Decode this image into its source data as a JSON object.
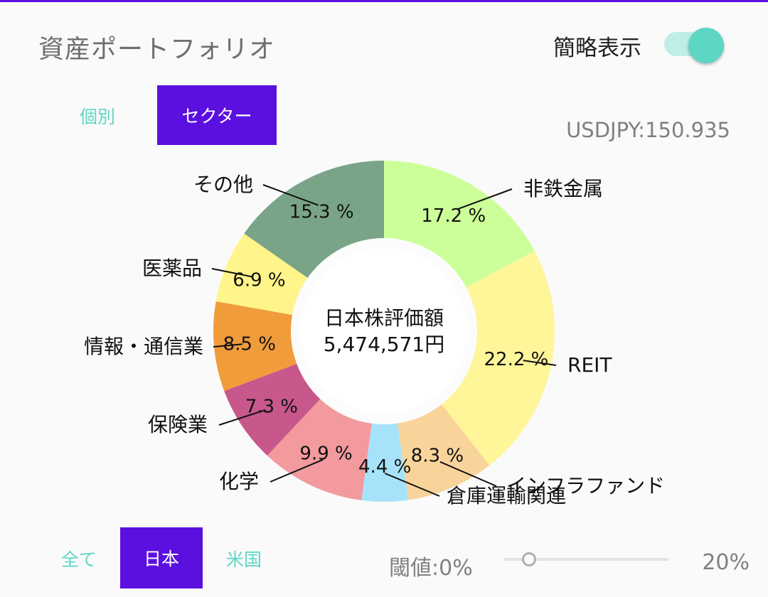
{
  "header": {
    "title": "資産ポートフォリオ",
    "toggle_label": "簡略表示",
    "toggle_on": true
  },
  "view_tabs": [
    {
      "label": "個別",
      "selected": false
    },
    {
      "label": "セクター",
      "selected": true
    }
  ],
  "fx_rate": "USDJPY:150.935",
  "market_tabs": [
    {
      "label": "全て",
      "selected": false
    },
    {
      "label": "日本",
      "selected": true
    },
    {
      "label": "米国",
      "selected": false
    }
  ],
  "threshold": {
    "label": "閾値:0%",
    "max_label": "20%",
    "value_percent": 0
  },
  "colors": {
    "accent": "#5b10e0",
    "teal": "#5dd6c4"
  },
  "chart_data": {
    "type": "pie",
    "center_label": "日本株評価額",
    "center_value": "5,474,571円",
    "slices": [
      {
        "label": "非鉄金属",
        "value": 17.2,
        "value_label": "17.2 %",
        "color": "#ccff99"
      },
      {
        "label": "REIT",
        "value": 22.2,
        "value_label": "22.2 %",
        "color": "#fff599"
      },
      {
        "label": "インフラファンド",
        "value": 8.3,
        "value_label": "8.3 %",
        "color": "#f8d49a"
      },
      {
        "label": "倉庫運輸関連",
        "value": 4.4,
        "value_label": "4.4 %",
        "color": "#a6e3fb"
      },
      {
        "label": "化学",
        "value": 9.9,
        "value_label": "9.9 %",
        "color": "#f29a9d"
      },
      {
        "label": "保険業",
        "value": 7.3,
        "value_label": "7.3 %",
        "color": "#c8578b"
      },
      {
        "label": "情報・通信業",
        "value": 8.5,
        "value_label": "8.5 %",
        "color": "#f09c3b"
      },
      {
        "label": "医薬品",
        "value": 6.9,
        "value_label": "6.9 %",
        "color": "#fff58a"
      },
      {
        "label": "その他",
        "value": 15.3,
        "value_label": "15.3 %",
        "color": "#7aa487"
      }
    ]
  }
}
